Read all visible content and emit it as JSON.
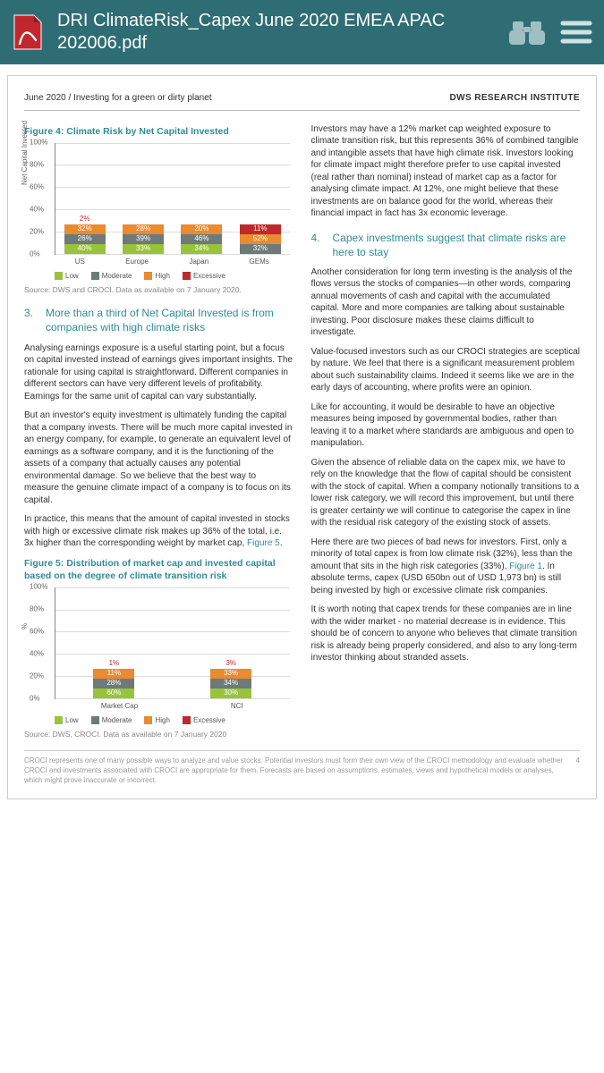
{
  "reader": {
    "title": "DRI ClimateRisk_Capex June 2020 EMEA APAC 202006.pdf"
  },
  "header": {
    "left": "June 2020 / Investing for a green or dirty planet",
    "right": "DWS RESEARCH INSTITUTE"
  },
  "palette": {
    "low": "#9ac33c",
    "moderate": "#6e7a7a",
    "high": "#e98b2e",
    "excessive": "#c1272d"
  },
  "risk_labels": {
    "low": "Low",
    "moderate": "Moderate",
    "high": "High",
    "excessive": "Excessive"
  },
  "fig4": {
    "title": "Figure 4: Climate Risk by Net Capital Invested",
    "ylabel": "Net Capital Invested",
    "ymax": 100,
    "ystep": 20,
    "categories": [
      "US",
      "Europe",
      "Japan",
      "GEMs"
    ],
    "series": {
      "low": [
        40,
        33,
        34,
        5
      ],
      "moderate": [
        26,
        39,
        46,
        32
      ],
      "high": [
        32,
        28,
        20,
        52
      ],
      "excessive": [
        2,
        0,
        0,
        11
      ]
    },
    "source": "Source: DWS and CROCI. Data as available on 7 January 2020."
  },
  "sec3": {
    "num": "3.",
    "title": "More than a third of Net Capital Invested is from companies with high climate risks",
    "p1": "Analysing earnings exposure is a useful starting point, but a focus on capital invested instead of earnings gives important insights. The rationale for using capital is straightforward. Different companies in different sectors can have very different levels of profitability. Earnings for the same unit of capital can vary substantially.",
    "p2": "But an investor's equity investment is ultimately funding the capital that a company invests. There will be much more capital invested in an energy company, for example, to generate an equivalent level of earnings as a software company, and it is the functioning of the assets of a company that actually causes any potential environmental damage. So we believe that the best way to measure the genuine climate impact of a company is to focus on its capital.",
    "p3a": "In practice, this means that the amount of capital invested in stocks with high or excessive climate risk makes up 36% of the total, i.e. 3x higher than the corresponding weight by market cap, ",
    "p3link": "Figure 5",
    "p3b": "."
  },
  "fig5": {
    "title": "Figure 5: Distribution of market cap and invested capital based on the degree of climate transition risk",
    "ylabel": "%",
    "ymax": 100,
    "ystep": 20,
    "categories": [
      "Market Cap",
      "NCI"
    ],
    "series": {
      "low": [
        60,
        30
      ],
      "moderate": [
        28,
        34
      ],
      "high": [
        11,
        33
      ],
      "excessive": [
        1,
        3
      ]
    },
    "source": "Source: DWS, CROCI. Data as available on 7 January 2020"
  },
  "right": {
    "p1": "Investors may have a 12% market cap weighted exposure to climate transition risk, but this represents 36% of combined tangible and intangible assets that have high climate risk. Investors looking for climate impact might therefore prefer to use capital invested (real rather than nominal) instead of market cap as a factor for analysing climate impact. At 12%, one might believe that these investments are on balance good for the world, whereas their financial impact in fact has 3x economic leverage.",
    "sec4_num": "4.",
    "sec4_title": "Capex investments suggest that climate risks are here to stay",
    "p2": "Another consideration for long term investing is the analysis of the flows versus the stocks of companies—in other words, comparing annual movements of cash and capital with the accumulated capital. More and more companies are talking about sustainable investing. Poor disclosure makes these claims difficult to investigate.",
    "p3": "Value-focused investors such as our CROCI strategies are sceptical by nature. We feel that there is a significant measurement problem about such sustainability claims. Indeed it seems like we are in the early days of accounting, where profits were an opinion.",
    "p4": "Like for accounting, it would be desirable to have an objective measures being imposed by governmental bodies, rather than leaving it to a market where standards are ambiguous and open to manipulation.",
    "p5": "Given the absence of reliable data on the capex mix, we have to rely on the knowledge that the flow of capital should be consistent with the stock of capital. When a company notionally transitions to a lower risk category, we will record this improvement, but until there is greater certainty we will continue to categorise the capex in line with the residual risk category of the existing stock of assets.",
    "p6a": "Here there are two pieces of bad news for investors. First, only a minority of total capex is from low climate risk (32%), less than the amount that sits in the high risk categories (33%), ",
    "p6link": "Figure 1",
    "p6b": ". In absolute terms, capex (USD 650bn out of USD 1,973 bn) is still being invested by high or excessive climate risk companies.",
    "p7": "It is worth noting that capex trends for these companies are in line with the wider market - no material decrease is in evidence. This should be of concern to anyone who believes that climate transition risk is already being properly considered, and also to any long-term investor thinking about stranded assets."
  },
  "footer": {
    "disclaimer": "CROCI represents one of many possible ways to analyze and value stocks. Potential investors must form their own view of the CROCI methodology and evaluate whether CROCI and investments associated with CROCI are appropriate for them. Forecasts are based on assumptions, estimates, views and hypothetical models or analyses, which might prove inaccurate or incorrect.",
    "page": "4"
  }
}
